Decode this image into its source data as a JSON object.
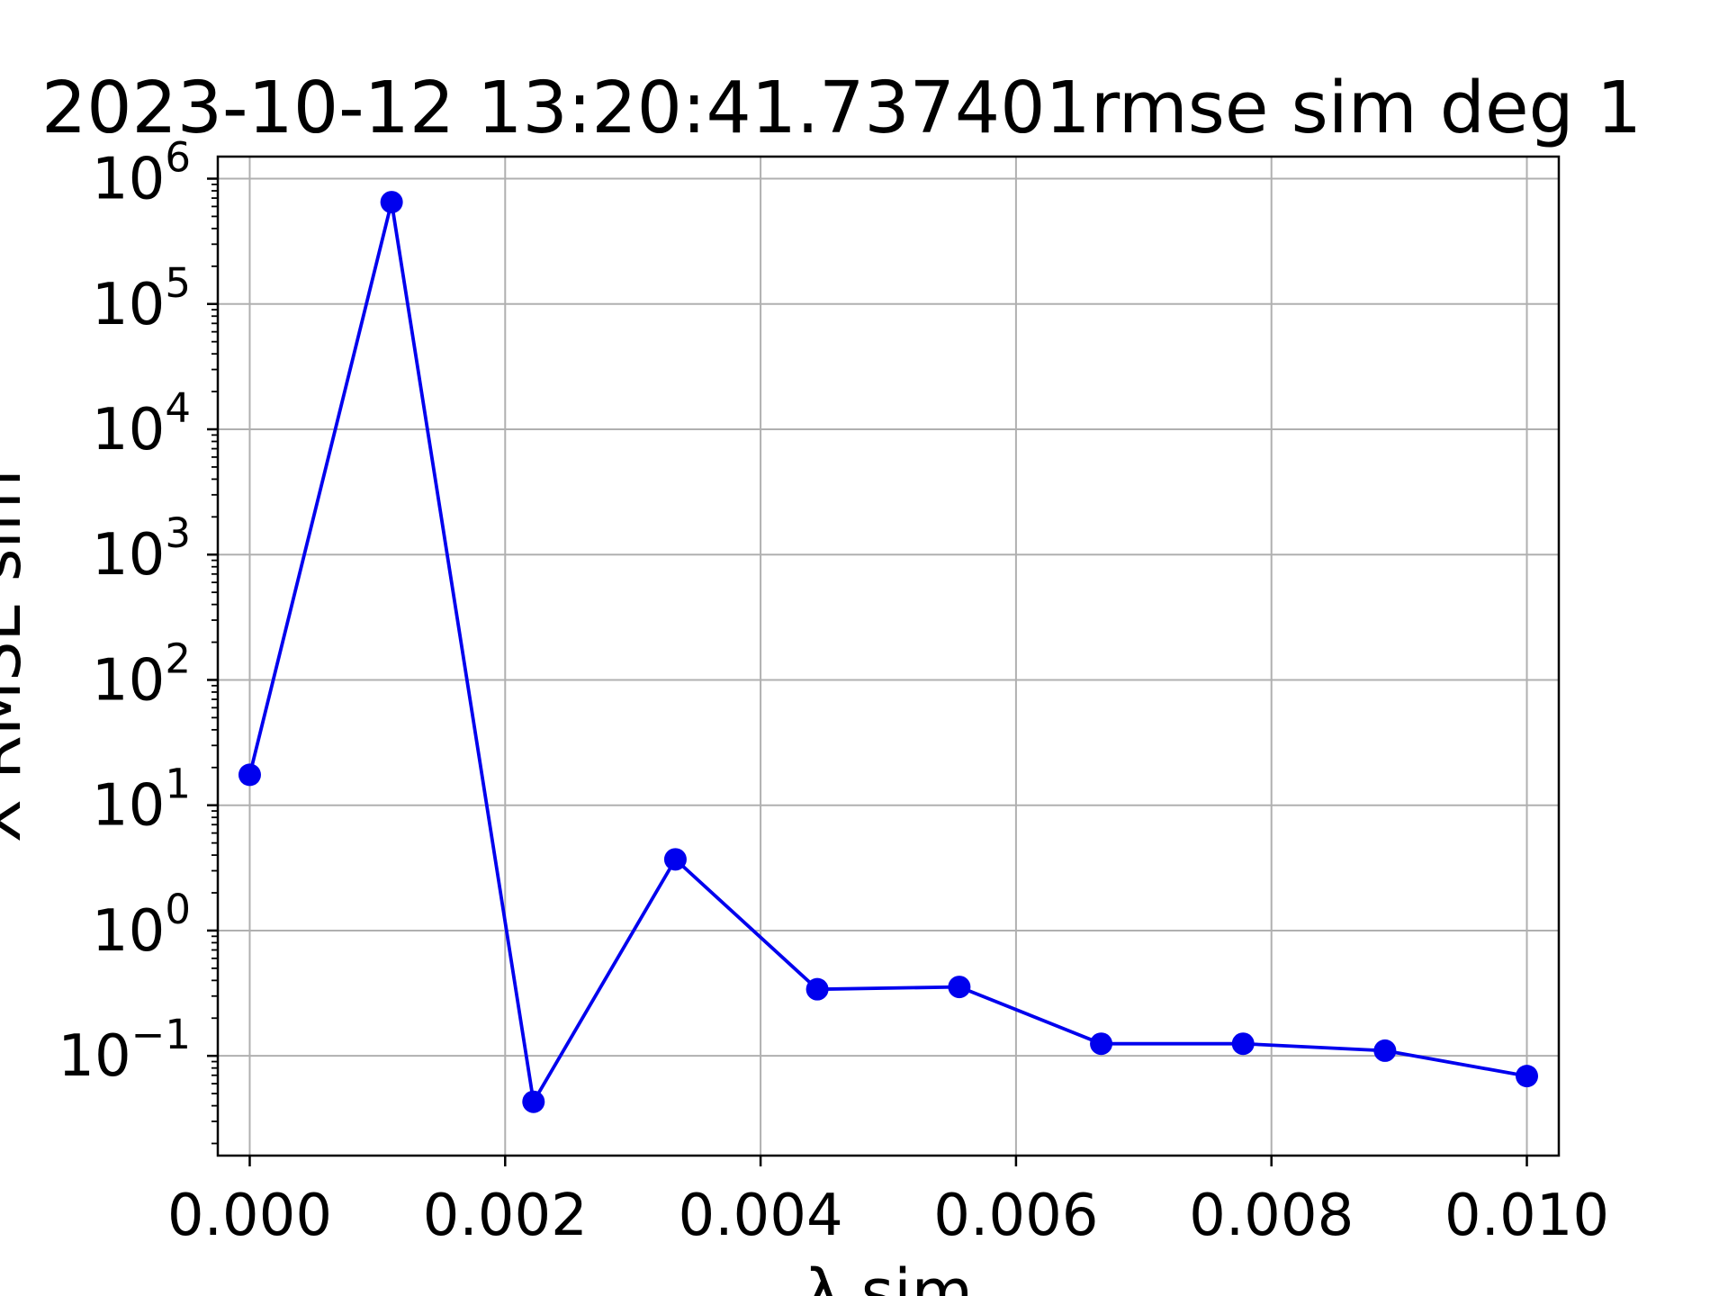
{
  "chart_data": {
    "type": "line",
    "title": "2023-10-12 13:20:41.737401rmse sim deg 1",
    "xlabel": "λ sim",
    "ylabel": "X RMSE sim",
    "y_scale": "log",
    "grid": true,
    "xlim": [
      -0.00025,
      0.01025
    ],
    "ylim": [
      0.016,
      1500000.0
    ],
    "x_ticks": [
      {
        "value": 0.0,
        "label": "0.000"
      },
      {
        "value": 0.002,
        "label": "0.002"
      },
      {
        "value": 0.004,
        "label": "0.004"
      },
      {
        "value": 0.006,
        "label": "0.006"
      },
      {
        "value": 0.008,
        "label": "0.008"
      },
      {
        "value": 0.01,
        "label": "0.010"
      }
    ],
    "y_ticks": [
      {
        "value": 0.1,
        "base": "10",
        "exp": "−1"
      },
      {
        "value": 1,
        "base": "10",
        "exp": "0"
      },
      {
        "value": 10,
        "base": "10",
        "exp": "1"
      },
      {
        "value": 100,
        "base": "10",
        "exp": "2"
      },
      {
        "value": 1000,
        "base": "10",
        "exp": "3"
      },
      {
        "value": 10000,
        "base": "10",
        "exp": "4"
      },
      {
        "value": 100000,
        "base": "10",
        "exp": "5"
      },
      {
        "value": 1000000,
        "base": "10",
        "exp": "6"
      }
    ],
    "series": [
      {
        "color": "#0000ee",
        "marker": "circle",
        "x": [
          0.0,
          0.001111,
          0.002222,
          0.003333,
          0.004444,
          0.005556,
          0.006667,
          0.007778,
          0.008889,
          0.01
        ],
        "y": [
          17.5,
          650000,
          0.043,
          3.7,
          0.34,
          0.355,
          0.125,
          0.125,
          0.11,
          0.069
        ]
      }
    ]
  }
}
